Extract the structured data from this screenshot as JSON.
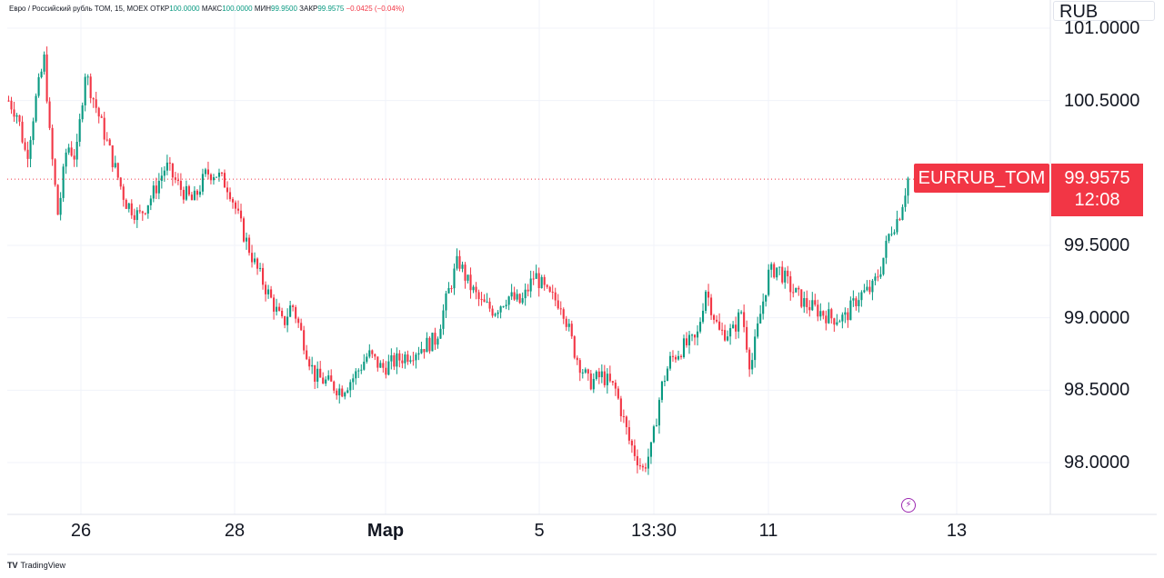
{
  "legend": {
    "title": "Евро / Российский рубль TOM, 15, MOEX",
    "open_label": "ОТКР",
    "open": "100.0000",
    "high_label": "МАКС",
    "high": "100.0000",
    "low_label": "МИН",
    "low": "99.9500",
    "close_label": "ЗАКР",
    "close": "99.9575",
    "change": "−0.0425 (−0.04%)"
  },
  "currency": "RUB",
  "series_label": "EURRUB_TOM",
  "last_price": "99.9575",
  "countdown": "12:08",
  "branding": {
    "logo_text": "TradingView"
  },
  "colors": {
    "up": "#089981",
    "down": "#f23645",
    "price_line": "#f23645",
    "grid": "#f0f3fa"
  },
  "chart_data": {
    "type": "candlestick",
    "y_axis": {
      "ticks": [
        "98.0000",
        "98.5000",
        "99.0000",
        "99.5000",
        "100.5000",
        "101.0000"
      ],
      "ylim": [
        97.65,
        101.1
      ]
    },
    "x_axis": {
      "ticks": [
        "26",
        "28",
        "Мар",
        "5",
        "13:30",
        "11",
        "13"
      ]
    },
    "close_path": [
      [
        0,
        100.5
      ],
      [
        0.01,
        100.4
      ],
      [
        0.02,
        100.1
      ],
      [
        0.03,
        100.5
      ],
      [
        0.04,
        100.8
      ],
      [
        0.045,
        100.3
      ],
      [
        0.055,
        99.7
      ],
      [
        0.065,
        100.2
      ],
      [
        0.075,
        100.1
      ],
      [
        0.085,
        100.7
      ],
      [
        0.095,
        100.5
      ],
      [
        0.105,
        100.3
      ],
      [
        0.12,
        100.0
      ],
      [
        0.13,
        99.8
      ],
      [
        0.145,
        99.7
      ],
      [
        0.16,
        99.85
      ],
      [
        0.175,
        100.05
      ],
      [
        0.19,
        99.9
      ],
      [
        0.205,
        99.8
      ],
      [
        0.22,
        100.0
      ],
      [
        0.23,
        100.0
      ],
      [
        0.245,
        99.9
      ],
      [
        0.26,
        99.6
      ],
      [
        0.275,
        99.35
      ],
      [
        0.29,
        99.15
      ],
      [
        0.305,
        98.95
      ],
      [
        0.315,
        99.1
      ],
      [
        0.325,
        98.9
      ],
      [
        0.34,
        98.6
      ],
      [
        0.355,
        98.55
      ],
      [
        0.37,
        98.5
      ],
      [
        0.385,
        98.6
      ],
      [
        0.4,
        98.75
      ],
      [
        0.415,
        98.65
      ],
      [
        0.43,
        98.7
      ],
      [
        0.445,
        98.75
      ],
      [
        0.46,
        98.8
      ],
      [
        0.475,
        98.85
      ],
      [
        0.49,
        99.2
      ],
      [
        0.5,
        99.4
      ],
      [
        0.51,
        99.25
      ],
      [
        0.525,
        99.1
      ],
      [
        0.54,
        99.05
      ],
      [
        0.555,
        99.15
      ],
      [
        0.57,
        99.1
      ],
      [
        0.585,
        99.3
      ],
      [
        0.6,
        99.15
      ],
      [
        0.615,
        99.1
      ],
      [
        0.63,
        98.75
      ],
      [
        0.645,
        98.55
      ],
      [
        0.66,
        98.6
      ],
      [
        0.675,
        98.5
      ],
      [
        0.69,
        98.15
      ],
      [
        0.705,
        97.95
      ],
      [
        0.715,
        98.1
      ],
      [
        0.725,
        98.5
      ],
      [
        0.735,
        98.7
      ],
      [
        0.75,
        98.8
      ],
      [
        0.765,
        98.85
      ],
      [
        0.775,
        99.2
      ],
      [
        0.79,
        98.9
      ],
      [
        0.805,
        98.9
      ],
      [
        0.815,
        99.05
      ],
      [
        0.825,
        98.65
      ],
      [
        0.835,
        99.0
      ],
      [
        0.845,
        99.3
      ],
      [
        0.855,
        99.35
      ],
      [
        0.87,
        99.2
      ],
      [
        0.885,
        99.1
      ],
      [
        0.9,
        99.05
      ],
      [
        0.915,
        99.0
      ],
      [
        0.93,
        99.0
      ],
      [
        0.945,
        99.15
      ],
      [
        0.96,
        99.2
      ],
      [
        0.97,
        99.35
      ],
      [
        0.98,
        99.6
      ],
      [
        0.99,
        99.7
      ],
      [
        1.0,
        99.96
      ]
    ]
  }
}
